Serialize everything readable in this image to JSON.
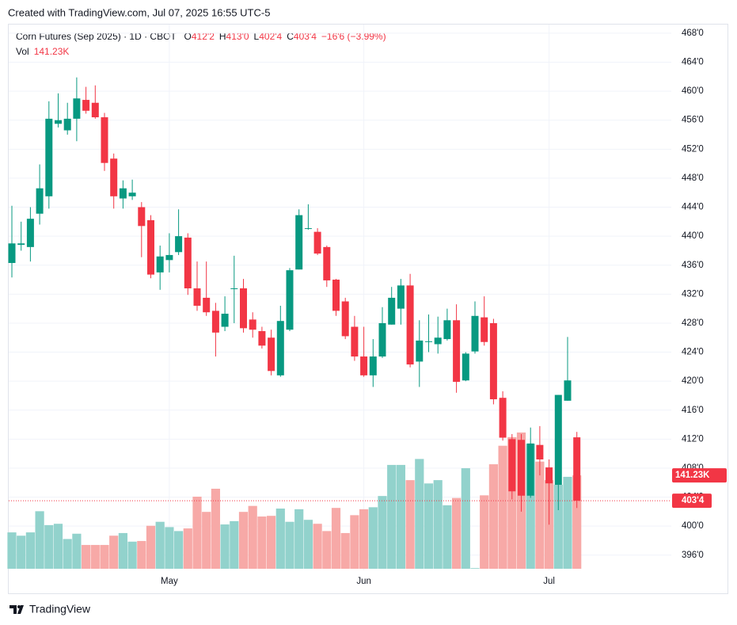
{
  "chart_data": {
    "type": "candlestick",
    "credit": "Created with TradingView.com, Jul 07, 2025 16:55 UTC-5",
    "title": "Corn Futures (Sep 2025) · 1D · CBOT",
    "legend": [
      {
        "key": "O",
        "value": "412'2"
      },
      {
        "key": "H",
        "value": "413'0"
      },
      {
        "key": "L",
        "value": "402'4"
      },
      {
        "key": "C",
        "value": "403'4"
      }
    ],
    "change": "−16'6 (−3.99%)",
    "brand": "TradingView",
    "categories": [
      null,
      null,
      null,
      null,
      null,
      null,
      null,
      null,
      null,
      null,
      null,
      null,
      null,
      null,
      null,
      null,
      null,
      "May",
      null,
      null,
      null,
      null,
      null,
      null,
      null,
      null,
      null,
      null,
      null,
      null,
      null,
      null,
      null,
      null,
      null,
      null,
      null,
      null,
      "Jun",
      null,
      null,
      null,
      null,
      null,
      null,
      null,
      null,
      null,
      null,
      null,
      null,
      null,
      null,
      null,
      null,
      null,
      null,
      null,
      "Jul",
      null,
      null,
      null
    ],
    "open": [
      436.3,
      438.8,
      438.5,
      443.1,
      445.5,
      455.5,
      454.6,
      456.2,
      458.8,
      458.4,
      456.4,
      450.7,
      445.2,
      445.5,
      444,
      442.2,
      435,
      436.7,
      437.8,
      439.8,
      432.8,
      431.5,
      429.7,
      427.5,
      432.7,
      432.8,
      428.5,
      426.9,
      426,
      420.8,
      427.1,
      435.4,
      441,
      440.6,
      438.5,
      434,
      431,
      427.5,
      423.4,
      420.8,
      423.4,
      427.8,
      430,
      433.2,
      422.7,
      425.4,
      425.1,
      425.8,
      428.4,
      420.1,
      424.1,
      428.8,
      428,
      417.7,
      412,
      411.9,
      404.2,
      411.2,
      408.1,
      405.7,
      417.3,
      412.25
    ],
    "high": [
      444.2,
      442,
      444,
      449.9,
      458.6,
      459.7,
      458.4,
      461.9,
      460.6,
      460.8,
      457,
      451.4,
      447.7,
      447.8,
      444.7,
      442.9,
      438.7,
      440.4,
      443.7,
      440.4,
      436.5,
      436.5,
      430.8,
      431.7,
      437.3,
      434.1,
      429.5,
      427.5,
      427.1,
      430.4,
      435.6,
      443.7,
      444.4,
      441.1,
      438.7,
      434.1,
      431.5,
      429,
      427.5,
      425.8,
      430.2,
      433,
      434.1,
      434.8,
      428.4,
      429.2,
      428.9,
      430,
      430.6,
      424,
      431,
      431.7,
      428.6,
      418.6,
      412.7,
      412.7,
      413.6,
      413.8,
      409.2,
      418.1,
      426.1,
      413
    ],
    "low": [
      434.3,
      438,
      436.5,
      441.6,
      443.8,
      455,
      454,
      453.1,
      456.9,
      456.2,
      449,
      443.8,
      443.8,
      445,
      437.1,
      434.2,
      432.6,
      435,
      437.4,
      431.9,
      429.7,
      429,
      423.4,
      426.9,
      428,
      426.7,
      426,
      424.5,
      420.8,
      420.6,
      426.9,
      435.4,
      440.9,
      437.4,
      433,
      429,
      425.8,
      422.8,
      420.6,
      419.2,
      423.2,
      427.8,
      427.8,
      421.9,
      419.2,
      424,
      423.8,
      425.6,
      418.4,
      420,
      423.8,
      424.9,
      416.8,
      411.8,
      403.7,
      402,
      403.9,
      407,
      400.2,
      402.2,
      417.3,
      402.5
    ],
    "close": [
      439,
      439,
      442.4,
      446.6,
      456.2,
      456,
      456.2,
      459,
      457.3,
      456.4,
      450.1,
      445.5,
      446.6,
      446,
      441.4,
      434.7,
      437.2,
      437.4,
      440,
      432.8,
      430.4,
      429.5,
      426.7,
      429.3,
      432.8,
      427.3,
      427.1,
      424.9,
      421.4,
      428.3,
      435.3,
      442.9,
      441.1,
      437.6,
      433.9,
      429.7,
      426.2,
      423.4,
      420.8,
      423.4,
      428,
      431.5,
      433.2,
      422.3,
      425.6,
      425.5,
      426,
      428.4,
      419.9,
      423.8,
      429,
      425.4,
      417.5,
      412.2,
      404.8,
      404.2,
      411.4,
      409.2,
      405.9,
      418.1,
      420.1,
      403.5
    ],
    "close_label": "403'4",
    "up_color": "#089981",
    "down_color": "#f23645",
    "volume": {
      "name": "Vol",
      "up_color": "#92d2cc",
      "down_color": "#f7a9a7",
      "label": "141.23K",
      "values": [
        55000,
        50000,
        55000,
        87000,
        66000,
        68000,
        45000,
        53000,
        36000,
        36000,
        36000,
        50000,
        54000,
        41000,
        42000,
        65000,
        71000,
        63000,
        57000,
        61000,
        109000,
        86000,
        121000,
        67000,
        72000,
        86000,
        95000,
        79000,
        80000,
        91000,
        71000,
        90000,
        74000,
        68000,
        57000,
        92000,
        54000,
        81000,
        90000,
        93000,
        110000,
        157000,
        157000,
        134000,
        166000,
        129000,
        134000,
        96000,
        107000,
        152000,
        1000,
        111000,
        158000,
        186000,
        199000,
        206000,
        189000,
        162000,
        134000,
        127000,
        139000,
        141230
      ]
    },
    "ylim": [
      393.9,
      469.3
    ],
    "yticks": [
      {
        "value": 396,
        "label": "396'0"
      },
      {
        "value": 400,
        "label": "400'0"
      },
      {
        "value": 404,
        "label": "404'0"
      },
      {
        "value": 408,
        "label": "408'0"
      },
      {
        "value": 412,
        "label": "412'0"
      },
      {
        "value": 416,
        "label": "416'0"
      },
      {
        "value": 420,
        "label": "420'0"
      },
      {
        "value": 424,
        "label": "424'0"
      },
      {
        "value": 428,
        "label": "428'0"
      },
      {
        "value": 432,
        "label": "432'0"
      },
      {
        "value": 436,
        "label": "436'0"
      },
      {
        "value": 440,
        "label": "440'0"
      },
      {
        "value": 444,
        "label": "444'0"
      },
      {
        "value": 448,
        "label": "448'0"
      },
      {
        "value": 452,
        "label": "452'0"
      },
      {
        "value": 456,
        "label": "456'0"
      },
      {
        "value": 460,
        "label": "460'0"
      },
      {
        "value": 464,
        "label": "464'0"
      },
      {
        "value": 468,
        "label": "468'0"
      }
    ],
    "grid": true
  }
}
